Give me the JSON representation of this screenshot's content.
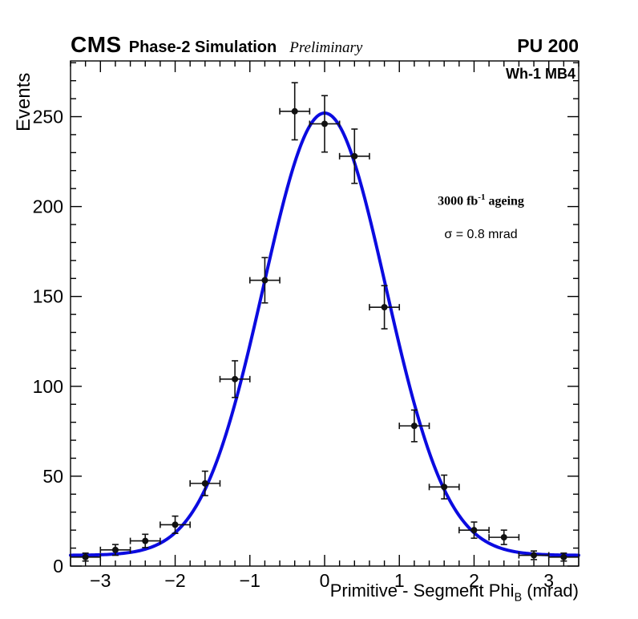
{
  "header": {
    "experiment": "CMS",
    "simulation": "Phase-2 Simulation",
    "preliminary": "Preliminary",
    "pileup": "PU 200"
  },
  "plot": {
    "region_label": "Wh-1 MB4",
    "ageing_prefix": "3000 fb",
    "ageing_sup": "-1",
    "ageing_suffix": " ageing",
    "sigma_text": "σ = 0.8 mrad",
    "xlabel_main": "Primitive - Segment Phi",
    "xlabel_sub": "B",
    "xlabel_unit": " (mrad)",
    "ylabel": "Events"
  },
  "chart_data": {
    "type": "scatter",
    "title": "CMS Phase-2 Simulation Preliminary, PU 200, Wh-1 MB4",
    "xlabel": "Primitive - Segment Phi_B (mrad)",
    "ylabel": "Events",
    "xlim": [
      -3.4,
      3.4
    ],
    "ylim": [
      0,
      281
    ],
    "xticks": [
      -3,
      -2,
      -1,
      0,
      1,
      2,
      3
    ],
    "yticks": [
      0,
      50,
      100,
      150,
      200,
      250
    ],
    "x_minor_step": 0.2,
    "y_minor_step": 10,
    "grid": false,
    "legend": "none",
    "marker": "filled-circle",
    "marker_color": "#111111",
    "points": [
      {
        "x": -3.2,
        "y": 5,
        "xerr": 0.2,
        "yerr": 2.2
      },
      {
        "x": -2.8,
        "y": 9,
        "xerr": 0.2,
        "yerr": 3.0
      },
      {
        "x": -2.4,
        "y": 14,
        "xerr": 0.2,
        "yerr": 3.7
      },
      {
        "x": -2.0,
        "y": 23,
        "xerr": 0.2,
        "yerr": 4.8
      },
      {
        "x": -1.6,
        "y": 46,
        "xerr": 0.2,
        "yerr": 6.8
      },
      {
        "x": -1.2,
        "y": 104,
        "xerr": 0.2,
        "yerr": 10.2
      },
      {
        "x": -0.8,
        "y": 159,
        "xerr": 0.2,
        "yerr": 12.6
      },
      {
        "x": -0.4,
        "y": 253,
        "xerr": 0.2,
        "yerr": 15.9
      },
      {
        "x": 0.0,
        "y": 246,
        "xerr": 0.2,
        "yerr": 15.7
      },
      {
        "x": 0.4,
        "y": 228,
        "xerr": 0.2,
        "yerr": 15.1
      },
      {
        "x": 0.8,
        "y": 144,
        "xerr": 0.2,
        "yerr": 12.0
      },
      {
        "x": 1.2,
        "y": 78,
        "xerr": 0.2,
        "yerr": 8.8
      },
      {
        "x": 1.6,
        "y": 44,
        "xerr": 0.2,
        "yerr": 6.6
      },
      {
        "x": 2.0,
        "y": 20,
        "xerr": 0.2,
        "yerr": 4.5
      },
      {
        "x": 2.4,
        "y": 16,
        "xerr": 0.2,
        "yerr": 4.0
      },
      {
        "x": 2.8,
        "y": 6,
        "xerr": 0.2,
        "yerr": 2.4
      },
      {
        "x": 3.2,
        "y": 5,
        "xerr": 0.2,
        "yerr": 2.2
      }
    ],
    "fit": {
      "shape": "gaussian",
      "amplitude": 246,
      "mean": 0.0,
      "sigma": 0.82,
      "offset": 6,
      "sigma_label": 0.8,
      "color": "#0b0be0",
      "line_width": 4
    }
  }
}
